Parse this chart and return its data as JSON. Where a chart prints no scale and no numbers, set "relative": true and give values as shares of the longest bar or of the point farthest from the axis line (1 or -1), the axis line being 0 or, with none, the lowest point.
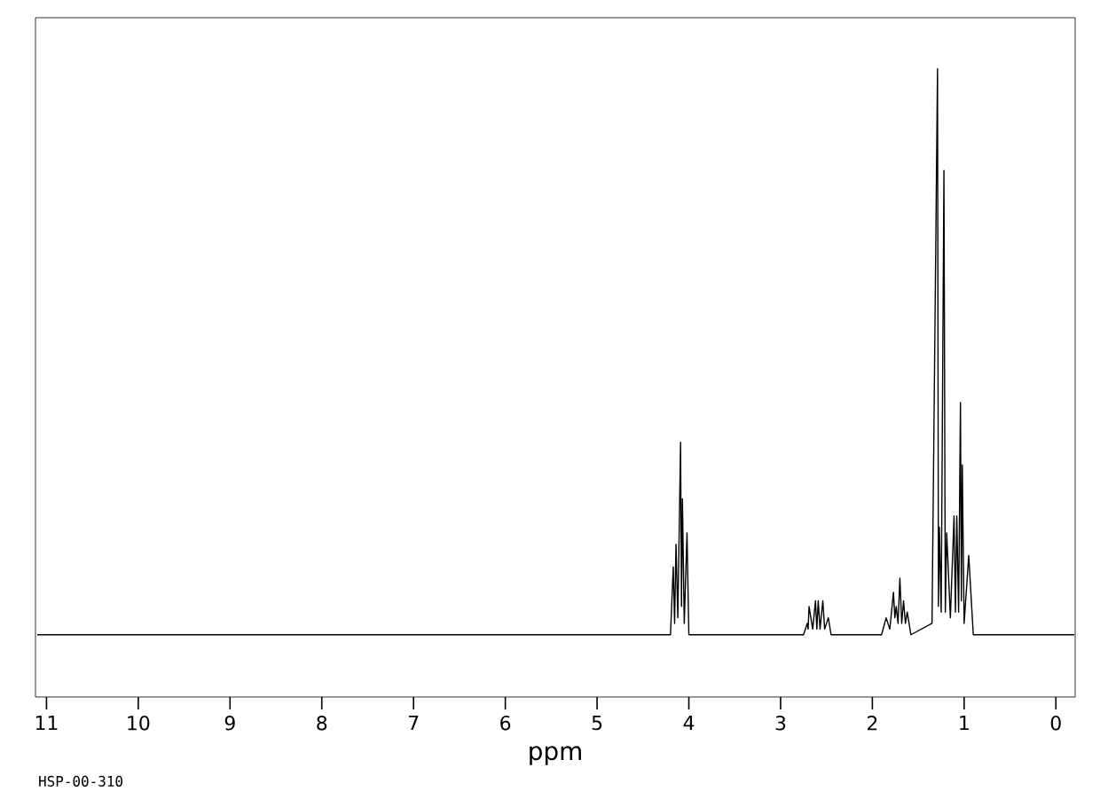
{
  "chart_data": {
    "type": "line",
    "relative": true,
    "xlabel": "ppm",
    "color": "#000000",
    "annotations": [
      "HSP-00-310"
    ],
    "xlim": [
      11.12,
      -0.21
    ],
    "xticks": [
      11,
      10,
      9,
      8,
      7,
      6,
      5,
      4,
      3,
      2,
      1,
      0
    ],
    "x": [
      11.1,
      4.2,
      4.17,
      4.155,
      4.14,
      4.12,
      4.09,
      4.08,
      4.07,
      4.05,
      4.02,
      4.0,
      2.75,
      2.71,
      2.7,
      2.69,
      2.65,
      2.62,
      2.605,
      2.59,
      2.57,
      2.54,
      2.52,
      2.48,
      2.45,
      1.9,
      1.85,
      1.81,
      1.77,
      1.755,
      1.74,
      1.72,
      1.7,
      1.68,
      1.66,
      1.64,
      1.62,
      1.58,
      1.35,
      1.29,
      1.28,
      1.27,
      1.25,
      1.22,
      1.205,
      1.19,
      1.15,
      1.11,
      1.095,
      1.08,
      1.06,
      1.04,
      1.03,
      1.02,
      1.0,
      0.95,
      0.9,
      -0.2
    ],
    "values": [
      0,
      0,
      0.12,
      0.02,
      0.16,
      0.03,
      0.34,
      0.05,
      0.24,
      0.02,
      0.18,
      0,
      0,
      0.02,
      0.01,
      0.05,
      0.01,
      0.06,
      0.01,
      0.06,
      0.01,
      0.06,
      0.01,
      0.03,
      0,
      0,
      0.03,
      0.01,
      0.075,
      0.03,
      0.05,
      0.02,
      0.1,
      0.02,
      0.06,
      0.02,
      0.04,
      0,
      0.02,
      1.0,
      0.05,
      0.19,
      0.04,
      0.82,
      0.04,
      0.18,
      0.03,
      0.21,
      0.04,
      0.21,
      0.04,
      0.41,
      0.06,
      0.3,
      0.02,
      0.14,
      0,
      0
    ]
  }
}
